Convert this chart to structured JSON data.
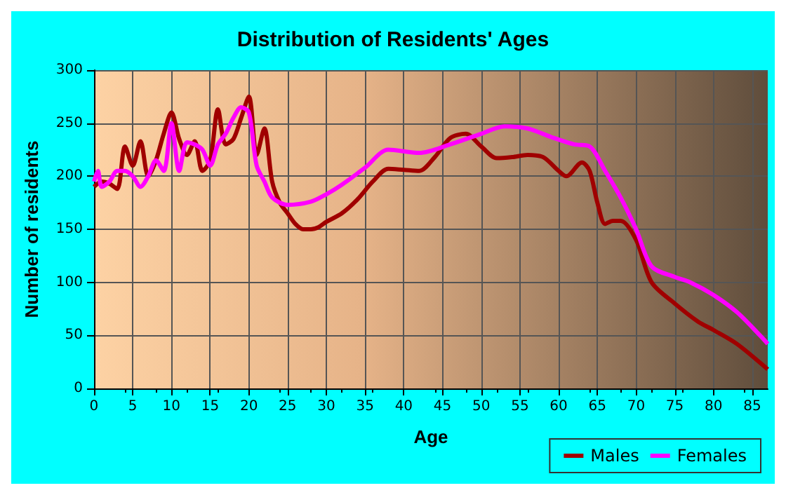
{
  "chart_data": {
    "type": "line",
    "title": "Distribution of Residents' Ages",
    "xlabel": "Age",
    "ylabel": "Number of residents",
    "xlim": [
      0,
      87
    ],
    "xticks": [
      0,
      5,
      10,
      15,
      20,
      25,
      30,
      35,
      40,
      45,
      50,
      55,
      60,
      65,
      70,
      75,
      80,
      85
    ],
    "ylim": [
      0,
      300
    ],
    "yticks": [
      0,
      50,
      100,
      150,
      200,
      250,
      300
    ],
    "grid": true,
    "legend": "bottom right",
    "marker": "none",
    "line_style": "solid",
    "series": [
      {
        "name": "Males",
        "color": "#a00000",
        "x": [
          0,
          1,
          2,
          3,
          4,
          5,
          6,
          7,
          8,
          9,
          10,
          11,
          12,
          13,
          14,
          15,
          16,
          17,
          18,
          19,
          20,
          21,
          22,
          23,
          24,
          25,
          26,
          27,
          28,
          29,
          30,
          32,
          34,
          36,
          38,
          40,
          42,
          44,
          46,
          48,
          50,
          52,
          54,
          56,
          58,
          60,
          61,
          63,
          64,
          65,
          66,
          67,
          68,
          70,
          72,
          75,
          78,
          80,
          83,
          87
        ],
        "values": [
          190,
          195,
          193,
          188,
          228,
          210,
          233,
          200,
          215,
          240,
          260,
          235,
          220,
          233,
          205,
          215,
          263,
          230,
          235,
          255,
          275,
          220,
          245,
          195,
          175,
          165,
          155,
          150,
          150,
          152,
          157,
          165,
          178,
          195,
          207,
          206,
          205,
          218,
          236,
          240,
          228,
          217,
          218,
          220,
          218,
          205,
          200,
          213,
          205,
          175,
          155,
          158,
          158,
          140,
          100,
          80,
          63,
          55,
          42,
          18
        ]
      },
      {
        "name": "Females",
        "color": "#ff00ff",
        "x": [
          0,
          0.5,
          1,
          2,
          3,
          4,
          5,
          6,
          7,
          8,
          9,
          10,
          11,
          12,
          13,
          14,
          15,
          16,
          17,
          18,
          19,
          20,
          21,
          22,
          23,
          25,
          28,
          30,
          32,
          35,
          38,
          42,
          46,
          50,
          53,
          56,
          59,
          62,
          64,
          66,
          68,
          70,
          72,
          75,
          77,
          80,
          83,
          86,
          87
        ],
        "values": [
          195,
          205,
          190,
          195,
          205,
          205,
          200,
          190,
          200,
          215,
          205,
          250,
          205,
          232,
          230,
          225,
          210,
          230,
          240,
          255,
          265,
          260,
          210,
          195,
          180,
          173,
          176,
          183,
          192,
          208,
          225,
          222,
          230,
          240,
          247,
          245,
          237,
          230,
          228,
          205,
          180,
          150,
          115,
          105,
          100,
          88,
          72,
          50,
          42
        ]
      }
    ]
  }
}
